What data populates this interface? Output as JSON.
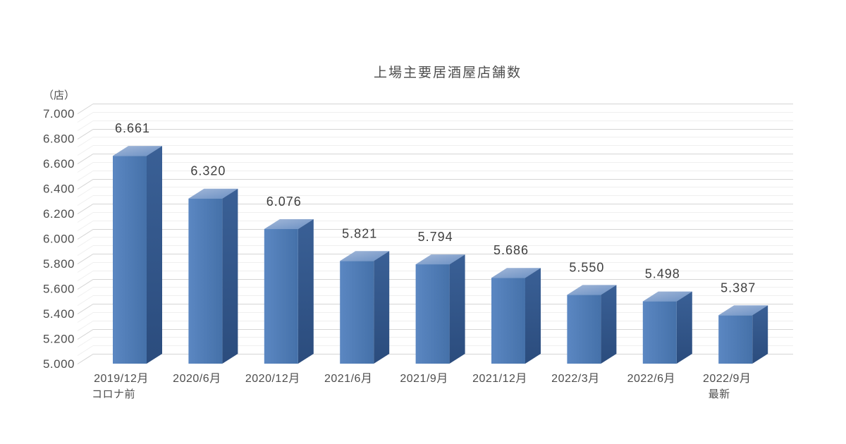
{
  "page": {
    "background": "#ffffff"
  },
  "chart_data": {
    "type": "bar",
    "style": "3d-column",
    "title": "上場主要居酒屋店舗数",
    "unit_label": "（店）",
    "legend": "none",
    "grid": "horizontal-major-and-minor",
    "categories": [
      "2019/12月",
      "2020/6月",
      "2020/12月",
      "2021/6月",
      "2021/9月",
      "2021/12月",
      "2022/3月",
      "2022/6月",
      "2022/9月"
    ],
    "category_sublabels": [
      "コロナ前",
      "",
      "",
      "",
      "",
      "",
      "",
      "",
      "最新"
    ],
    "values": [
      6661,
      6320,
      6076,
      5821,
      5794,
      5686,
      5550,
      5498,
      5387
    ],
    "value_labels": [
      "6.661",
      "6.320",
      "6.076",
      "5.821",
      "5.794",
      "5.686",
      "5.550",
      "5.498",
      "5.387"
    ],
    "ylim": [
      5000,
      7000
    ],
    "ytick_values": [
      5000,
      5200,
      5400,
      5600,
      5800,
      6000,
      6200,
      6400,
      6600,
      6800,
      7000
    ],
    "ytick_labels": [
      "5.000",
      "5.200",
      "5.400",
      "5.600",
      "5.800",
      "6.000",
      "6.200",
      "6.400",
      "6.600",
      "6.800",
      "7.000"
    ],
    "xlabel": "",
    "ylabel": "（店）",
    "colors": {
      "bar_front_light": "#5b87c2",
      "bar_front_dark": "#4571a9",
      "bar_top_light": "#a3b8d9",
      "bar_top_dark": "#6b90c3",
      "bar_side_light": "#3a6096",
      "bar_side_dark": "#2b4c7d",
      "gridline_major": "#d5d5d5",
      "gridline_minor": "#efefef",
      "axis_text": "#4d4d4d",
      "value_text": "#3f3f3f"
    }
  }
}
